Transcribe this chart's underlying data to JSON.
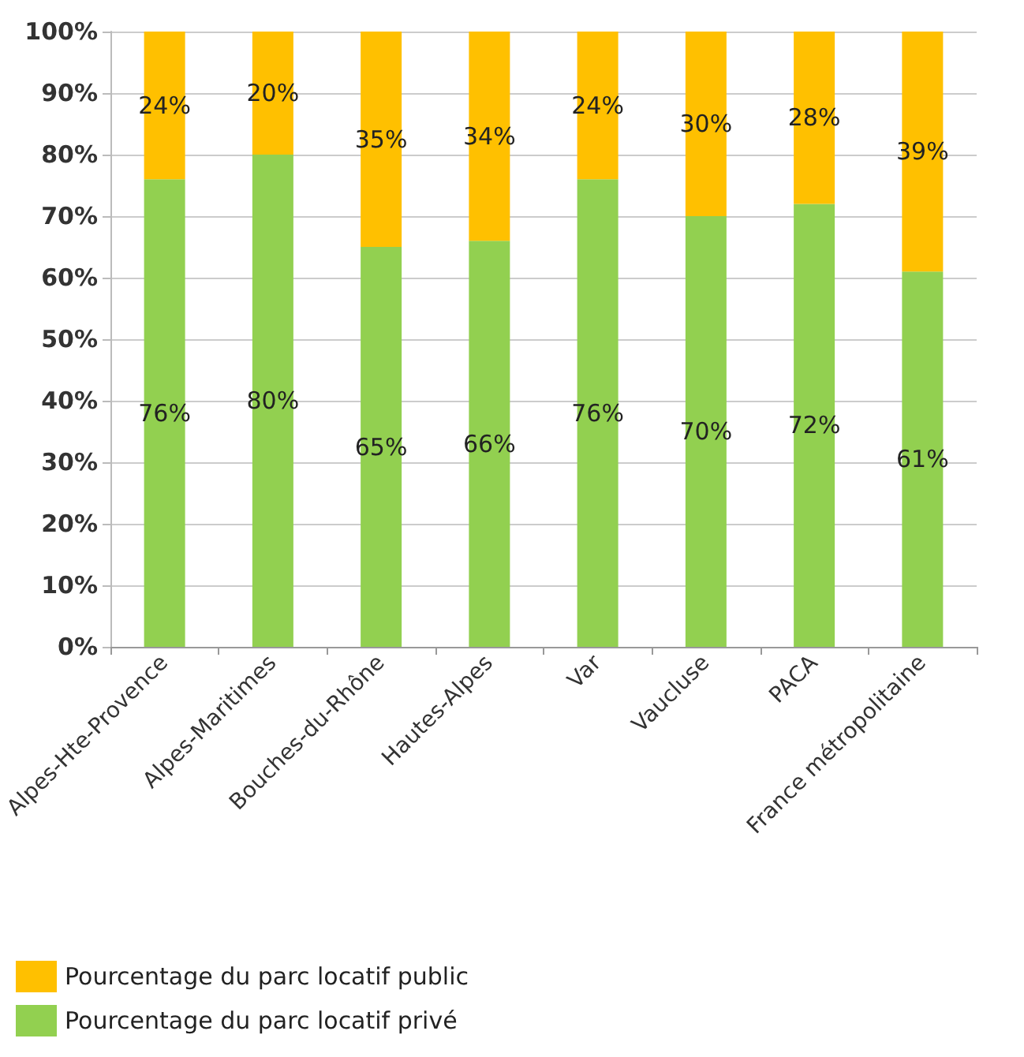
{
  "chart_data": {
    "type": "bar",
    "stacked": true,
    "categories": [
      "Alpes-Hte-Provence",
      "Alpes-Maritimes",
      "Bouches-du-Rhône",
      "Hautes-Alpes",
      "Var",
      "Vaucluse",
      "PACA",
      "France métropolitaine"
    ],
    "series": [
      {
        "name": "Pourcentage du parc locatif privé",
        "color": "#92d050",
        "values": [
          76,
          80,
          65,
          66,
          76,
          70,
          72,
          61
        ],
        "value_labels": [
          "76%",
          "80%",
          "65%",
          "66%",
          "76%",
          "70%",
          "72%",
          "61%"
        ]
      },
      {
        "name": "Pourcentage du parc locatif public",
        "color": "#ffc000",
        "values": [
          24,
          20,
          35,
          34,
          24,
          30,
          28,
          39
        ],
        "value_labels": [
          "24%",
          "20%",
          "35%",
          "34%",
          "24%",
          "30%",
          "28%",
          "39%"
        ]
      }
    ],
    "ylim": [
      0,
      100
    ],
    "yticks": [
      {
        "value": 0,
        "label": "0%"
      },
      {
        "value": 10,
        "label": "10%"
      },
      {
        "value": 20,
        "label": "20%"
      },
      {
        "value": 30,
        "label": "30%"
      },
      {
        "value": 40,
        "label": "40%"
      },
      {
        "value": 50,
        "label": "50%"
      },
      {
        "value": 60,
        "label": "60%"
      },
      {
        "value": 70,
        "label": "70%"
      },
      {
        "value": 80,
        "label": "80%"
      },
      {
        "value": 90,
        "label": "90%"
      },
      {
        "value": 100,
        "label": "100%"
      }
    ],
    "grid": "y",
    "legend": "bottom left"
  }
}
